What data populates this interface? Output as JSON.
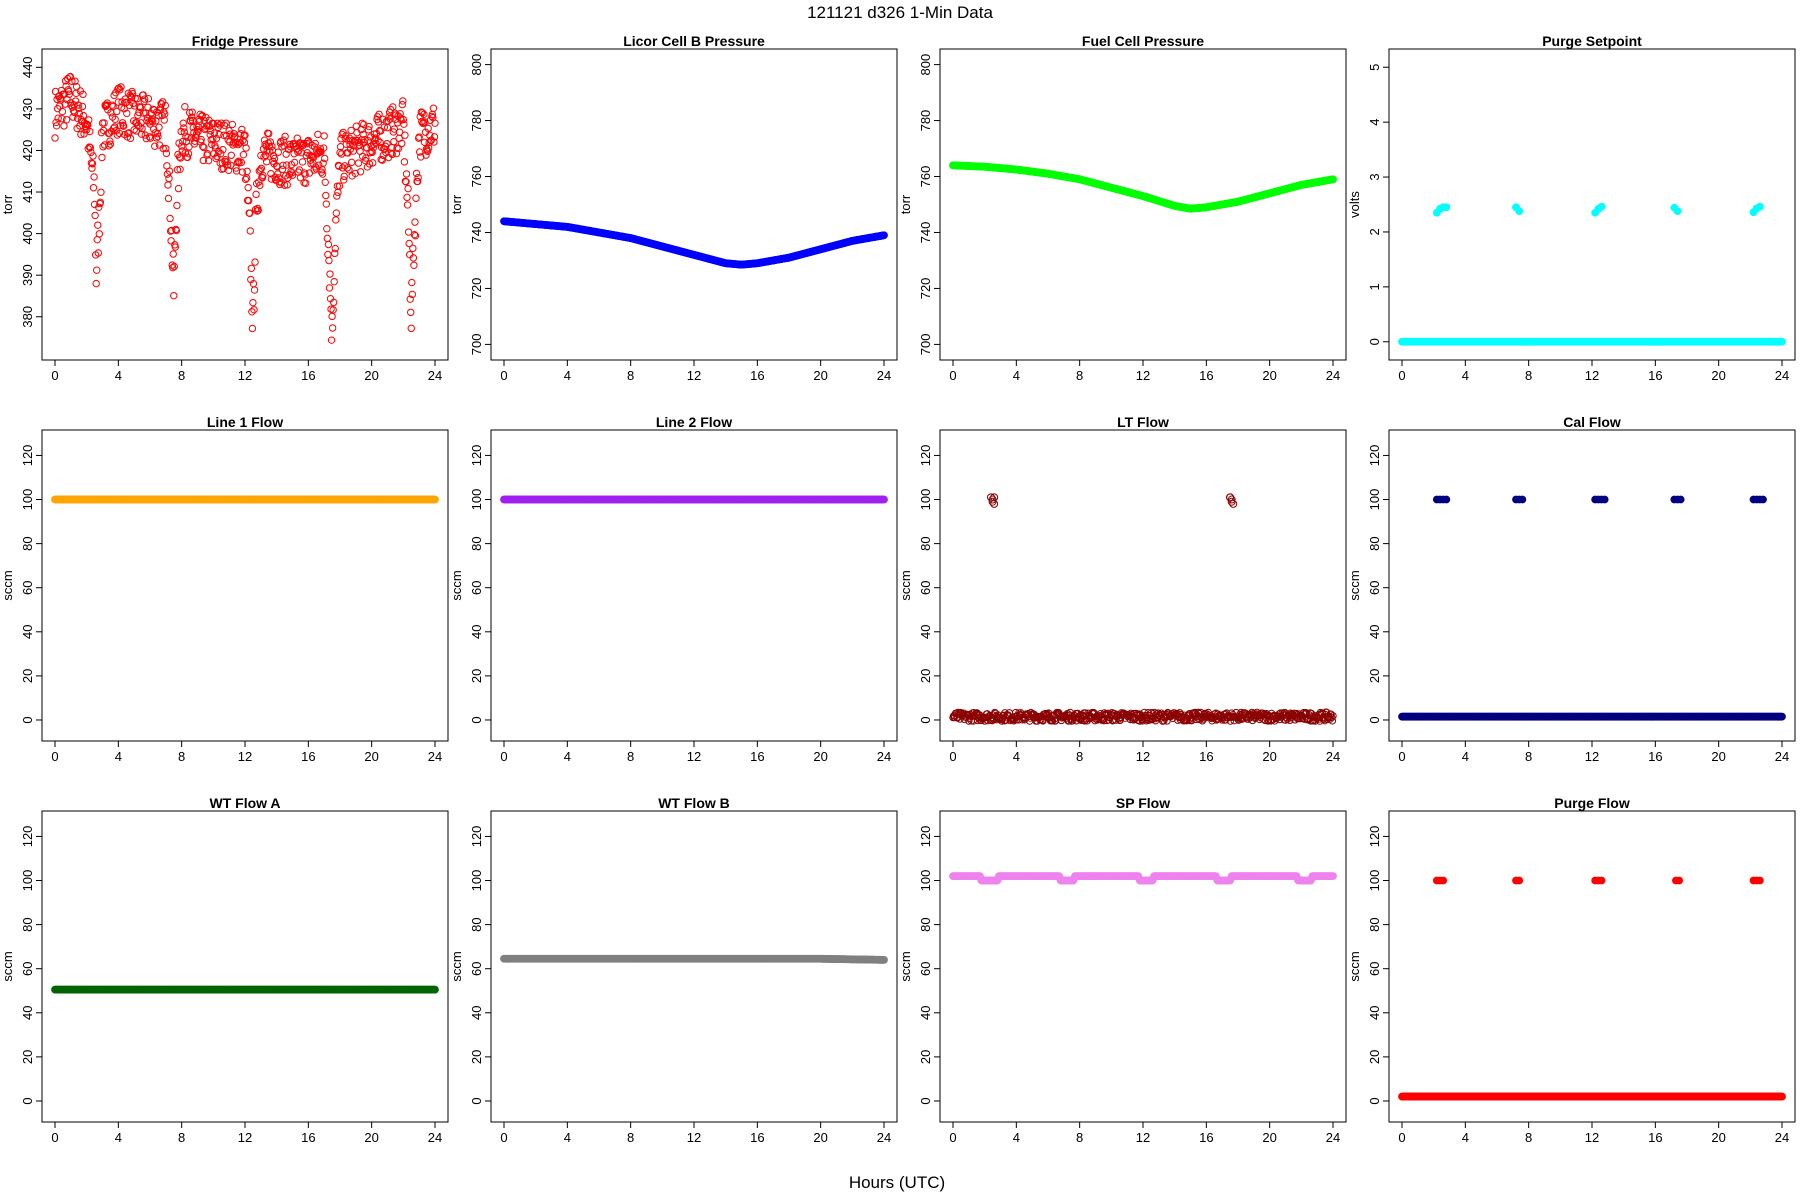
{
  "figure": {
    "title": "121121    d326    1-Min Data",
    "xlabel": "Hours (UTC)"
  },
  "chart_data": [
    {
      "type": "scatter",
      "title": "Fridge Pressure",
      "ylabel": "torr",
      "xlim": [
        0,
        24
      ],
      "ylim": [
        372,
        442
      ],
      "x_ticks": [
        0,
        4,
        8,
        12,
        16,
        20,
        24
      ],
      "y_ticks": [
        380,
        390,
        400,
        410,
        420,
        430,
        440
      ],
      "color": "#ff0000",
      "marker": "open-circle",
      "series": [
        {
          "x": [
            0,
            0.5,
            1,
            1.5,
            2,
            2.5,
            2.6,
            2.8,
            3,
            4,
            5,
            6,
            7,
            7.3,
            7.5,
            7.7,
            8,
            9,
            10,
            11,
            12,
            12.3,
            12.5,
            12.7,
            13,
            14,
            15,
            16,
            17,
            17.3,
            17.5,
            17.7,
            18,
            19,
            20,
            21,
            22,
            22.3,
            22.5,
            22.7,
            23,
            24
          ],
          "y": [
            429,
            431,
            433,
            430,
            427,
            410,
            390,
            405,
            425,
            430,
            428,
            427,
            426,
            405,
            386,
            410,
            425,
            423,
            422,
            421,
            420,
            400,
            378,
            405,
            419,
            418,
            417,
            418,
            419,
            395,
            376,
            400,
            418,
            420,
            422,
            424,
            426,
            405,
            381,
            400,
            424,
            426
          ]
        }
      ]
    },
    {
      "type": "scatter",
      "title": "Licor Cell B Pressure",
      "ylabel": "torr",
      "xlim": [
        0,
        24
      ],
      "ylim": [
        698,
        802
      ],
      "x_ticks": [
        0,
        4,
        8,
        12,
        16,
        20,
        24
      ],
      "y_ticks": [
        700,
        720,
        740,
        760,
        780,
        800
      ],
      "color": "#0000ff",
      "marker": "filled-circle",
      "series": [
        {
          "x": [
            0,
            2,
            4,
            6,
            8,
            10,
            12,
            14,
            15,
            16,
            18,
            20,
            22,
            24
          ],
          "y": [
            744,
            743,
            742,
            740,
            738,
            735,
            732,
            729,
            728.5,
            729,
            731,
            734,
            737,
            739
          ]
        }
      ]
    },
    {
      "type": "scatter",
      "title": "Fuel Cell Pressure",
      "ylabel": "torr",
      "xlim": [
        0,
        24
      ],
      "ylim": [
        698,
        802
      ],
      "x_ticks": [
        0,
        4,
        8,
        12,
        16,
        20,
        24
      ],
      "y_ticks": [
        700,
        720,
        740,
        760,
        780,
        800
      ],
      "color": "#00ff00",
      "marker": "filled-circle",
      "series": [
        {
          "x": [
            0,
            2,
            4,
            6,
            8,
            10,
            12,
            14,
            15,
            16,
            18,
            20,
            22,
            24
          ],
          "y": [
            764,
            763.5,
            762.5,
            761,
            759,
            756,
            753,
            749.5,
            748.5,
            749,
            751,
            754,
            757,
            759
          ]
        }
      ]
    },
    {
      "type": "scatter",
      "title": "Purge Setpoint",
      "ylabel": "volts",
      "xlim": [
        0,
        24
      ],
      "ylim": [
        -0.15,
        5.15
      ],
      "x_ticks": [
        0,
        4,
        8,
        12,
        16,
        20,
        24
      ],
      "y_ticks": [
        0,
        1,
        2,
        3,
        4,
        5
      ],
      "color": "#00ffff",
      "marker": "filled-circle",
      "series": [
        {
          "x": [
            0,
            24
          ],
          "y": [
            0,
            0
          ],
          "style": "line"
        },
        {
          "x": [
            2.2,
            2.4,
            2.6,
            2.8,
            7.2,
            7.4,
            12.2,
            12.4,
            12.6,
            17.2,
            17.4,
            22.2,
            22.4,
            22.6
          ],
          "y": [
            2.35,
            2.42,
            2.45,
            2.45,
            2.45,
            2.38,
            2.35,
            2.42,
            2.46,
            2.44,
            2.38,
            2.36,
            2.43,
            2.46
          ]
        }
      ]
    },
    {
      "type": "scatter",
      "title": "Line 1 Flow",
      "ylabel": "sccm",
      "xlim": [
        0,
        24
      ],
      "ylim": [
        -5,
        127
      ],
      "x_ticks": [
        0,
        4,
        8,
        12,
        16,
        20,
        24
      ],
      "y_ticks": [
        0,
        20,
        40,
        60,
        80,
        100,
        120
      ],
      "color": "#ffa500",
      "marker": "filled-circle",
      "series": [
        {
          "x": [
            0,
            24
          ],
          "y": [
            100,
            100
          ],
          "style": "line"
        }
      ]
    },
    {
      "type": "scatter",
      "title": "Line 2 Flow",
      "ylabel": "sccm",
      "xlim": [
        0,
        24
      ],
      "ylim": [
        -5,
        127
      ],
      "x_ticks": [
        0,
        4,
        8,
        12,
        16,
        20,
        24
      ],
      "y_ticks": [
        0,
        20,
        40,
        60,
        80,
        100,
        120
      ],
      "color": "#a020f0",
      "marker": "filled-circle",
      "series": [
        {
          "x": [
            0,
            24
          ],
          "y": [
            100,
            100
          ],
          "style": "line"
        }
      ]
    },
    {
      "type": "scatter",
      "title": "LT Flow",
      "ylabel": "sccm",
      "xlim": [
        0,
        24
      ],
      "ylim": [
        -5,
        127
      ],
      "x_ticks": [
        0,
        4,
        8,
        12,
        16,
        20,
        24
      ],
      "y_ticks": [
        0,
        20,
        40,
        60,
        80,
        100,
        120
      ],
      "color": "#8b0000",
      "marker": "open-circle",
      "series": [
        {
          "x": [
            0,
            24
          ],
          "y": [
            1.5,
            1.5
          ],
          "style": "band"
        },
        {
          "x": [
            2.4,
            2.5,
            2.6,
            2.5,
            2.6,
            17.5,
            17.6,
            17.7,
            17.6,
            17.5
          ],
          "y": [
            101,
            99,
            98,
            100,
            101,
            101,
            99,
            98,
            100,
            101
          ]
        }
      ]
    },
    {
      "type": "scatter",
      "title": "Cal Flow",
      "ylabel": "sccm",
      "xlim": [
        0,
        24
      ],
      "ylim": [
        -5,
        127
      ],
      "x_ticks": [
        0,
        4,
        8,
        12,
        16,
        20,
        24
      ],
      "y_ticks": [
        0,
        20,
        40,
        60,
        80,
        100,
        120
      ],
      "color": "#000080",
      "marker": "filled-circle",
      "series": [
        {
          "x": [
            0,
            24
          ],
          "y": [
            1.5,
            1.5
          ],
          "style": "line"
        },
        {
          "x": [
            2.2,
            2.4,
            2.6,
            2.8,
            7.2,
            7.4,
            7.6,
            12.2,
            12.4,
            12.6,
            12.8,
            17.2,
            17.4,
            17.6,
            22.2,
            22.4,
            22.6,
            22.8
          ],
          "y": [
            100,
            100,
            100,
            100,
            100,
            100,
            100,
            100,
            100,
            100,
            100,
            100,
            100,
            100,
            100,
            100,
            100,
            100
          ]
        }
      ]
    },
    {
      "type": "scatter",
      "title": "WT Flow A",
      "ylabel": "sccm",
      "xlim": [
        0,
        24
      ],
      "ylim": [
        -5,
        127
      ],
      "x_ticks": [
        0,
        4,
        8,
        12,
        16,
        20,
        24
      ],
      "y_ticks": [
        0,
        20,
        40,
        60,
        80,
        100,
        120
      ],
      "color": "#006400",
      "marker": "filled-circle",
      "series": [
        {
          "x": [
            0,
            24
          ],
          "y": [
            50.5,
            50.5
          ],
          "style": "line"
        }
      ]
    },
    {
      "type": "scatter",
      "title": "WT Flow B",
      "ylabel": "sccm",
      "xlim": [
        0,
        24
      ],
      "ylim": [
        -5,
        127
      ],
      "x_ticks": [
        0,
        4,
        8,
        12,
        16,
        20,
        24
      ],
      "y_ticks": [
        0,
        20,
        40,
        60,
        80,
        100,
        120
      ],
      "color": "#808080",
      "marker": "filled-circle",
      "series": [
        {
          "x": [
            0,
            20,
            24
          ],
          "y": [
            64.5,
            64.5,
            64
          ],
          "style": "line"
        }
      ]
    },
    {
      "type": "scatter",
      "title": "SP Flow",
      "ylabel": "sccm",
      "xlim": [
        0,
        24
      ],
      "ylim": [
        -5,
        127
      ],
      "x_ticks": [
        0,
        4,
        8,
        12,
        16,
        20,
        24
      ],
      "y_ticks": [
        0,
        20,
        40,
        60,
        80,
        100,
        120
      ],
      "color": "#ee82ee",
      "marker": "filled-circle",
      "series": [
        {
          "x": [
            0,
            1.7,
            1.8,
            2.8,
            2.9,
            6.7,
            6.8,
            7.6,
            7.7,
            11.7,
            11.8,
            12.6,
            12.7,
            16.6,
            16.7,
            17.5,
            17.6,
            21.7,
            21.8,
            22.6,
            22.7,
            24
          ],
          "y": [
            102,
            102,
            100,
            100,
            102,
            102,
            100,
            100,
            102,
            102,
            100,
            100,
            102,
            102,
            100,
            100,
            102,
            102,
            100,
            100,
            102,
            102
          ],
          "style": "line"
        }
      ]
    },
    {
      "type": "scatter",
      "title": "Purge Flow",
      "ylabel": "sccm",
      "xlim": [
        0,
        24
      ],
      "ylim": [
        -5,
        127
      ],
      "x_ticks": [
        0,
        4,
        8,
        12,
        16,
        20,
        24
      ],
      "y_ticks": [
        0,
        20,
        40,
        60,
        80,
        100,
        120
      ],
      "color": "#ff0000",
      "marker": "filled-circle",
      "series": [
        {
          "x": [
            0,
            24
          ],
          "y": [
            2,
            2
          ],
          "style": "line"
        },
        {
          "x": [
            2.2,
            2.4,
            2.6,
            7.2,
            7.4,
            12.2,
            12.4,
            12.6,
            17.3,
            17.5,
            22.2,
            22.4,
            22.6
          ],
          "y": [
            100,
            100,
            100,
            100,
            100,
            100,
            100,
            100,
            100,
            100,
            100,
            100,
            100
          ]
        }
      ]
    }
  ]
}
